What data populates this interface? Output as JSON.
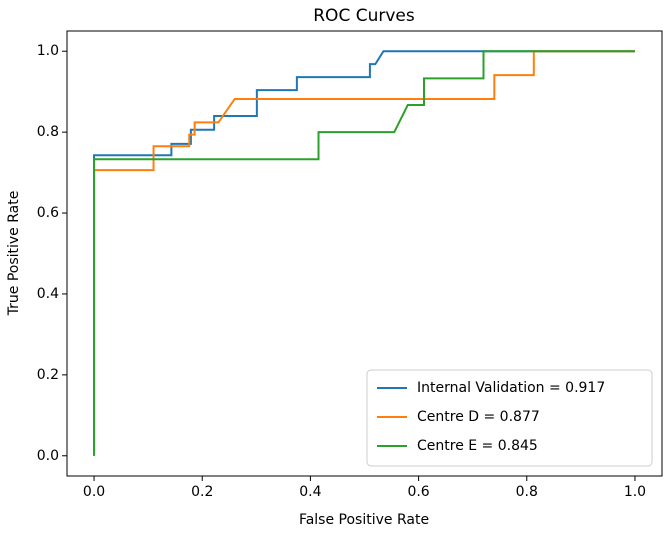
{
  "chart_data": {
    "type": "line",
    "title": "ROC Curves",
    "x_label": "False Positive Rate",
    "y_label": "True Positive Rate",
    "xlim": [
      -0.05,
      1.05
    ],
    "ylim": [
      -0.05,
      1.05
    ],
    "xticks": [
      {
        "value": 0,
        "label": "0.0"
      },
      0.2,
      0.4,
      0.6,
      0.8,
      {
        "value": 1,
        "label": "1.0"
      }
    ],
    "yticks": [
      {
        "value": 0,
        "label": "0.0"
      },
      0.2,
      0.4,
      0.6,
      0.8,
      {
        "value": 1,
        "label": "1.0"
      }
    ],
    "legend": "lower right",
    "grid": false,
    "series": [
      {
        "name": "Internal Validation = 0.917",
        "color": "#1f77b4",
        "x": [
          0,
          0,
          0.143,
          0.143,
          0.179,
          0.179,
          0.222,
          0.222,
          0.301,
          0.301,
          0.375,
          0.375,
          0.51,
          0.51,
          0.52,
          0.535,
          1
        ],
        "values": [
          0,
          0.743,
          0.743,
          0.771,
          0.771,
          0.806,
          0.806,
          0.84,
          0.84,
          0.904,
          0.904,
          0.936,
          0.936,
          0.968,
          0.968,
          1,
          1
        ]
      },
      {
        "name": "Centre D = 0.877",
        "color": "#ff7f0e",
        "x": [
          0,
          0,
          0.11,
          0.11,
          0.176,
          0.176,
          0.186,
          0.186,
          0.23,
          0.26,
          0.74,
          0.74,
          0.813,
          0.813,
          1
        ],
        "values": [
          0,
          0.706,
          0.706,
          0.765,
          0.765,
          0.794,
          0.794,
          0.824,
          0.824,
          0.882,
          0.882,
          0.941,
          0.941,
          1,
          1
        ]
      },
      {
        "name": "Centre E = 0.845",
        "color": "#2ca02c",
        "x": [
          0,
          0,
          0.415,
          0.415,
          0.555,
          0.58,
          0.61,
          0.61,
          0.72,
          0.72,
          1
        ],
        "values": [
          0,
          0.733,
          0.733,
          0.8,
          0.8,
          0.867,
          0.867,
          0.933,
          0.933,
          1,
          1
        ]
      }
    ]
  }
}
